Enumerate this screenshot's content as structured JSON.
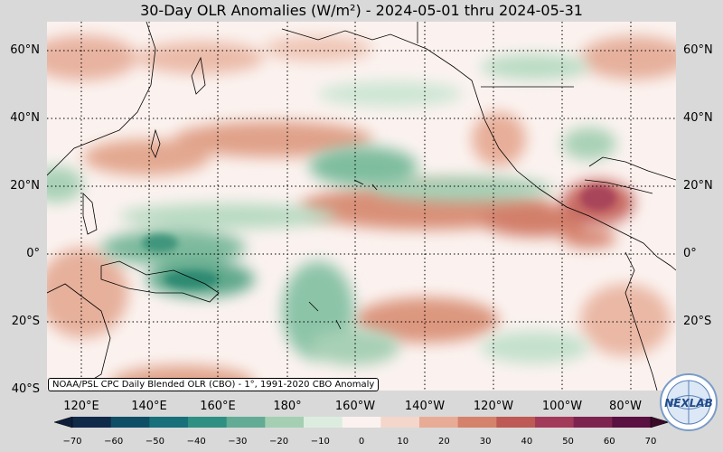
{
  "title": "30-Day OLR Anomalies (W/m²) - 2024-05-01 thru 2024-05-31",
  "lat_labels": [
    "60°N",
    "40°N",
    "20°N",
    "0°",
    "20°S",
    "40°S"
  ],
  "lon_labels": [
    "120°E",
    "140°E",
    "160°E",
    "180°",
    "160°W",
    "140°W",
    "120°W",
    "100°W",
    "80°W"
  ],
  "credit": "NOAA/PSL CPC Daily Blended OLR (CBO) - 1°, 1991-2020 CBO Anomaly",
  "colorbar": {
    "ticks": [
      "−70",
      "−60",
      "−50",
      "−40",
      "−30",
      "−20",
      "−10",
      "0",
      "10",
      "20",
      "30",
      "40",
      "50",
      "60",
      "70"
    ],
    "colors": [
      "#102a4a",
      "#0f4f66",
      "#18707a",
      "#2f8f82",
      "#63ab94",
      "#a4cfb2",
      "#dcede0",
      "#fbf2ef",
      "#f4d6ca",
      "#e7ab96",
      "#d4826c",
      "#bd5a55",
      "#a23b5a",
      "#7d2350",
      "#5a1040"
    ]
  },
  "logo_text": "NEXLAB",
  "colors": {
    "background": "#d9d9d9",
    "neutral": "#fbf2ef",
    "positive_anomaly": "#d98f78",
    "negative_anomaly": "#4f9f82"
  }
}
